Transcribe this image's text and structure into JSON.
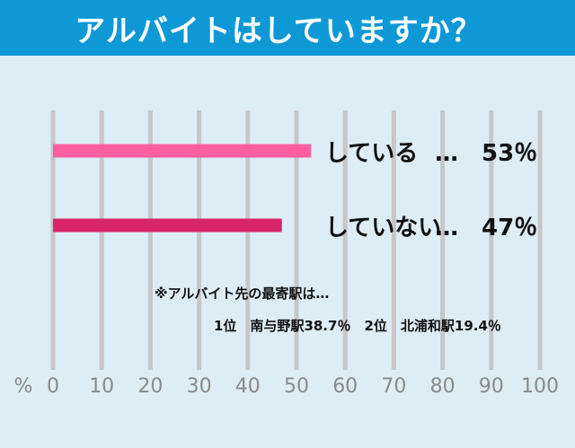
{
  "title": "アルバイトはしていますか？",
  "chart_data": {
    "type": "bar",
    "orientation": "horizontal",
    "categories": [
      "している",
      "していない"
    ],
    "values": [
      53,
      47
    ],
    "value_labels": [
      "…　53％",
      "…　47％"
    ],
    "colors": [
      "#ff5fa0",
      "#d8256a"
    ],
    "xlim": [
      0,
      100
    ],
    "xticks": [
      0,
      10,
      20,
      30,
      40,
      50,
      60,
      70,
      80,
      90,
      100
    ],
    "tick_labels": [
      "0",
      "10",
      "20",
      "30",
      "40",
      "50",
      "60",
      "70",
      "80",
      "90",
      "100"
    ],
    "xlabel": "%",
    "grid": true,
    "grid_color": "#c7c7c7"
  },
  "notes": {
    "line1": "※アルバイト先の最寄駅は…",
    "line2": "1位　南与野駅38.7％　2位　北浦和駅19.4％"
  },
  "colors": {
    "header_bg": "#0f98d6",
    "page_bg": "#dcedf5"
  }
}
